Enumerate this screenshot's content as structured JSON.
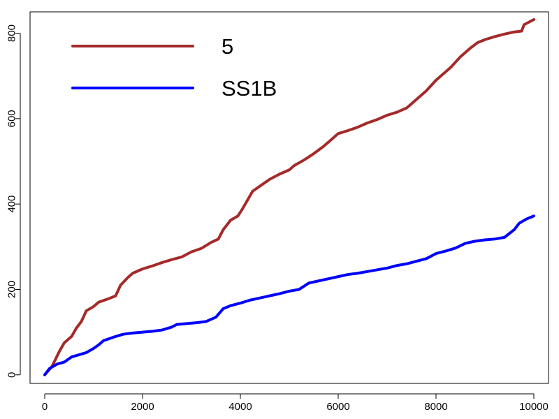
{
  "chart_data": {
    "type": "line",
    "title": "",
    "xlabel": "",
    "ylabel": "",
    "xlim": [
      -300,
      10300
    ],
    "ylim": [
      -20,
      850
    ],
    "x_ticks": [
      0,
      2000,
      4000,
      6000,
      8000,
      10000
    ],
    "y_ticks": [
      0,
      200,
      400,
      600,
      800
    ],
    "x_tick_labels": [
      "0",
      "2000",
      "4000",
      "6000",
      "8000",
      "10000"
    ],
    "y_tick_labels": [
      "0",
      "200",
      "400",
      "600",
      "800"
    ],
    "grid": false,
    "legend": {
      "position": "top-left",
      "border": false
    },
    "series": [
      {
        "name": "5",
        "color": "#A52A2A",
        "points": [
          [
            0,
            0
          ],
          [
            150,
            20
          ],
          [
            300,
            55
          ],
          [
            400,
            75
          ],
          [
            550,
            90
          ],
          [
            650,
            110
          ],
          [
            750,
            125
          ],
          [
            850,
            150
          ],
          [
            1000,
            160
          ],
          [
            1100,
            170
          ],
          [
            1300,
            178
          ],
          [
            1450,
            185
          ],
          [
            1550,
            210
          ],
          [
            1700,
            228
          ],
          [
            1800,
            238
          ],
          [
            2000,
            248
          ],
          [
            2200,
            255
          ],
          [
            2400,
            263
          ],
          [
            2600,
            270
          ],
          [
            2800,
            276
          ],
          [
            3000,
            288
          ],
          [
            3200,
            296
          ],
          [
            3400,
            310
          ],
          [
            3550,
            318
          ],
          [
            3650,
            340
          ],
          [
            3800,
            362
          ],
          [
            3950,
            372
          ],
          [
            4050,
            390
          ],
          [
            4150,
            410
          ],
          [
            4250,
            430
          ],
          [
            4400,
            442
          ],
          [
            4600,
            458
          ],
          [
            4800,
            470
          ],
          [
            5000,
            480
          ],
          [
            5100,
            490
          ],
          [
            5300,
            503
          ],
          [
            5500,
            518
          ],
          [
            5700,
            535
          ],
          [
            5850,
            550
          ],
          [
            6000,
            565
          ],
          [
            6200,
            572
          ],
          [
            6400,
            580
          ],
          [
            6600,
            590
          ],
          [
            6800,
            598
          ],
          [
            7000,
            608
          ],
          [
            7200,
            615
          ],
          [
            7400,
            625
          ],
          [
            7600,
            645
          ],
          [
            7800,
            665
          ],
          [
            8000,
            690
          ],
          [
            8150,
            705
          ],
          [
            8300,
            720
          ],
          [
            8500,
            745
          ],
          [
            8700,
            765
          ],
          [
            8850,
            778
          ],
          [
            9000,
            785
          ],
          [
            9200,
            792
          ],
          [
            9400,
            798
          ],
          [
            9600,
            803
          ],
          [
            9750,
            805
          ],
          [
            9800,
            820
          ],
          [
            10000,
            832
          ]
        ]
      },
      {
        "name": "SS1B",
        "color": "#0000FF",
        "points": [
          [
            0,
            0
          ],
          [
            100,
            15
          ],
          [
            250,
            25
          ],
          [
            400,
            30
          ],
          [
            550,
            42
          ],
          [
            700,
            47
          ],
          [
            850,
            52
          ],
          [
            1000,
            62
          ],
          [
            1100,
            70
          ],
          [
            1200,
            80
          ],
          [
            1400,
            88
          ],
          [
            1600,
            95
          ],
          [
            1800,
            98
          ],
          [
            2000,
            100
          ],
          [
            2200,
            102
          ],
          [
            2400,
            105
          ],
          [
            2600,
            112
          ],
          [
            2700,
            118
          ],
          [
            2900,
            120
          ],
          [
            3100,
            122
          ],
          [
            3300,
            125
          ],
          [
            3500,
            135
          ],
          [
            3650,
            155
          ],
          [
            3800,
            162
          ],
          [
            4000,
            168
          ],
          [
            4200,
            175
          ],
          [
            4400,
            180
          ],
          [
            4600,
            185
          ],
          [
            4800,
            190
          ],
          [
            5000,
            196
          ],
          [
            5200,
            200
          ],
          [
            5400,
            215
          ],
          [
            5600,
            220
          ],
          [
            5800,
            225
          ],
          [
            6000,
            230
          ],
          [
            6200,
            235
          ],
          [
            6400,
            238
          ],
          [
            6600,
            242
          ],
          [
            6800,
            246
          ],
          [
            7000,
            250
          ],
          [
            7200,
            256
          ],
          [
            7400,
            260
          ],
          [
            7600,
            266
          ],
          [
            7800,
            272
          ],
          [
            8000,
            284
          ],
          [
            8200,
            290
          ],
          [
            8400,
            297
          ],
          [
            8600,
            308
          ],
          [
            8800,
            313
          ],
          [
            9000,
            316
          ],
          [
            9200,
            318
          ],
          [
            9400,
            322
          ],
          [
            9600,
            340
          ],
          [
            9700,
            355
          ],
          [
            9850,
            365
          ],
          [
            10000,
            372
          ]
        ]
      }
    ]
  }
}
